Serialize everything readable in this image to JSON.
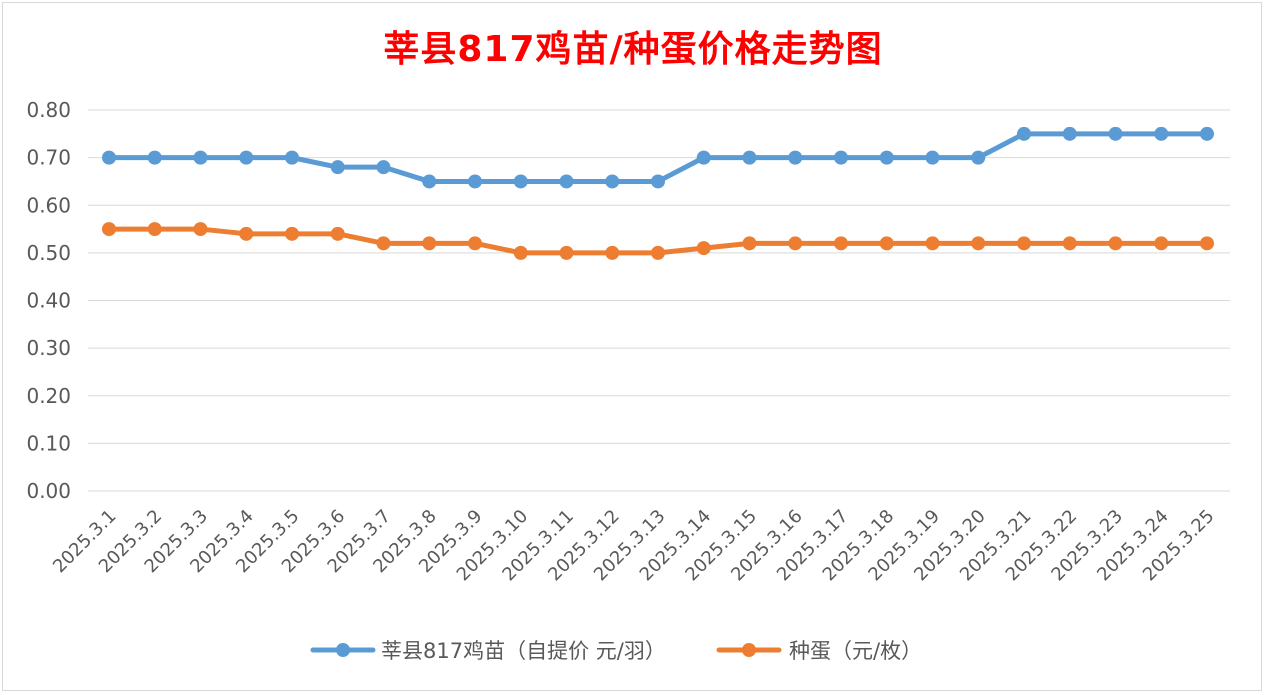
{
  "chart_data": {
    "type": "line",
    "title": "莘县817鸡苗/种蛋价格走势图",
    "xlabel": "",
    "ylabel": "",
    "ylim": [
      0,
      0.8
    ],
    "yticks": [
      "0.00",
      "0.10",
      "0.20",
      "0.30",
      "0.40",
      "0.50",
      "0.60",
      "0.70",
      "0.80"
    ],
    "grid": true,
    "legend_position": "bottom",
    "categories": [
      "2025.3.1",
      "2025.3.2",
      "2025.3.3",
      "2025.3.4",
      "2025.3.5",
      "2025.3.6",
      "2025.3.7",
      "2025.3.8",
      "2025.3.9",
      "2025.3.10",
      "2025.3.11",
      "2025.3.12",
      "2025.3.13",
      "2025.3.14",
      "2025.3.15",
      "2025.3.16",
      "2025.3.17",
      "2025.3.18",
      "2025.3.19",
      "2025.3.20",
      "2025.3.21",
      "2025.3.22",
      "2025.3.23",
      "2025.3.24",
      "2025.3.25"
    ],
    "series": [
      {
        "name": "莘县817鸡苗（自提价 元/羽）",
        "color": "#5b9bd5",
        "values": [
          0.7,
          0.7,
          0.7,
          0.7,
          0.7,
          0.68,
          0.68,
          0.65,
          0.65,
          0.65,
          0.65,
          0.65,
          0.65,
          0.7,
          0.7,
          0.7,
          0.7,
          0.7,
          0.7,
          0.7,
          0.75,
          0.75,
          0.75,
          0.75,
          0.75
        ]
      },
      {
        "name": "种蛋（元/枚）",
        "color": "#ed7d31",
        "values": [
          0.55,
          0.55,
          0.55,
          0.54,
          0.54,
          0.54,
          0.52,
          0.52,
          0.52,
          0.5,
          0.5,
          0.5,
          0.5,
          0.51,
          0.52,
          0.52,
          0.52,
          0.52,
          0.52,
          0.52,
          0.52,
          0.52,
          0.52,
          0.52,
          0.52
        ]
      }
    ]
  }
}
